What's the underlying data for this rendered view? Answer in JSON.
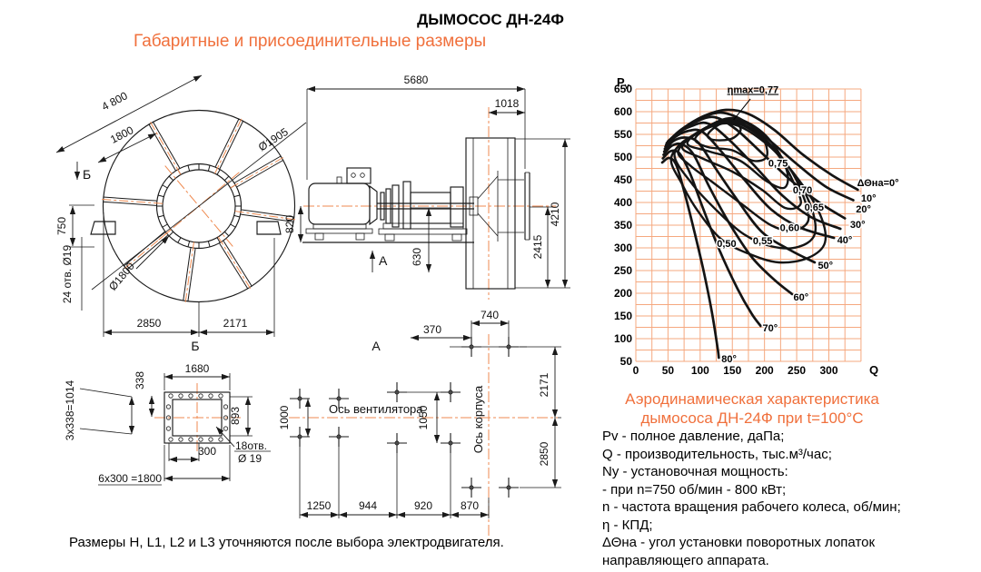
{
  "title": "ДЫМОСОС ДН-24Ф",
  "subtitle": "Габаритные и присоединительные размеры",
  "footnote": "Размеры  H, L1, L2 и L3 уточняются после выбора электродвигателя.",
  "chart_caption": {
    "line1": "Аэродинамическая характеристика",
    "line2": "дымососа ДН-24Ф при t=100°C"
  },
  "legend_lines": [
    "Pv - полное давление, даПа;",
    "Q - производительность, тыс.м³/час;",
    "Ny - установочная мощность:",
    "- при n=750 об/мин - 800 кВт;",
    "n - частота вращения рабочего колеса, об/мин;",
    "η - КПД;",
    "ΔΘна - угол установки поворотных лопаток",
    "направляющего аппарата."
  ],
  "colors": {
    "accent_text": "#f0703c",
    "grid": "#f5a87f",
    "centerline": "#ef8a50",
    "ink": "#1a1a1a",
    "curve": "#141414"
  },
  "drawings": {
    "front": {
      "d4800": "4 800",
      "d1800": "1800",
      "dia1905": "Ø1905",
      "dia1800": "Ø1800",
      "d750": "750",
      "holes": "24 отв. Ø19",
      "d2850": "2850",
      "d2171": "2171",
      "view": "Б",
      "arrow": "Б"
    },
    "side": {
      "d5680": "5680",
      "d1018": "1018",
      "d820": "820",
      "d630": "630",
      "d4210": "4210",
      "d2415": "2415",
      "arrow": "А"
    },
    "flange": {
      "d1680": "1680",
      "d338": "338",
      "d1014": "3x338=1014",
      "d893": "893",
      "d300": "300",
      "d1800": "6x300 =1800",
      "holes1": "18отв.",
      "holes2": "Ø 19"
    },
    "plan": {
      "view": "А",
      "d370": "370",
      "d740": "740",
      "d1000": "1000",
      "d1050": "1050",
      "axis_fan": "Ось вентилятора",
      "axis_housing": "Ось корпуса",
      "d2171": "2171",
      "d2850": "2850",
      "d1250": "1250",
      "d944": "944",
      "d920": "920",
      "d870": "870"
    }
  },
  "chart_data": {
    "type": "line",
    "title": "Аэродинамическая характеристика дымососа ДН-24Ф при t=100°C",
    "xlabel": "Q",
    "ylabel": "Pv",
    "xlim": [
      0,
      360
    ],
    "ylim": [
      50,
      650
    ],
    "x_ticks": [
      0,
      50,
      100,
      150,
      200,
      250,
      300
    ],
    "y_ticks": [
      50,
      100,
      150,
      200,
      250,
      300,
      350,
      400,
      450,
      500,
      550,
      600,
      650
    ],
    "grid": true,
    "grid_step": 25,
    "units": {
      "pressure": "даПа",
      "flow": "тыс.м³/час"
    },
    "pressure_curves": [
      {
        "angle": "ΔΘна=0°",
        "label": [
          344,
          444
        ],
        "points": [
          [
            50,
            535
          ],
          [
            75,
            565
          ],
          [
            105,
            590
          ],
          [
            140,
            604
          ],
          [
            175,
            595
          ],
          [
            215,
            560
          ],
          [
            260,
            505
          ],
          [
            305,
            460
          ],
          [
            345,
            428
          ]
        ]
      },
      {
        "angle": "10°",
        "label": [
          350,
          410
        ],
        "points": [
          [
            48,
            531
          ],
          [
            70,
            560
          ],
          [
            100,
            585
          ],
          [
            132,
            598
          ],
          [
            165,
            582
          ],
          [
            205,
            540
          ],
          [
            250,
            485
          ],
          [
            295,
            435
          ],
          [
            338,
            405
          ]
        ]
      },
      {
        "angle": "20°",
        "label": [
          342,
          386
        ],
        "points": [
          [
            47,
            527
          ],
          [
            66,
            555
          ],
          [
            92,
            577
          ],
          [
            122,
            588
          ],
          [
            155,
            562
          ],
          [
            195,
            510
          ],
          [
            240,
            450
          ],
          [
            285,
            400
          ],
          [
            325,
            365
          ]
        ]
      },
      {
        "angle": "30°",
        "label": [
          333,
          352
        ],
        "points": [
          [
            46,
            523
          ],
          [
            63,
            550
          ],
          [
            86,
            568
          ],
          [
            112,
            574
          ],
          [
            145,
            538
          ],
          [
            185,
            480
          ],
          [
            228,
            415
          ],
          [
            272,
            368
          ],
          [
            318,
            342
          ]
        ]
      },
      {
        "angle": "40°",
        "label": [
          313,
          318
        ],
        "points": [
          [
            45,
            518
          ],
          [
            60,
            543
          ],
          [
            80,
            557
          ],
          [
            103,
            556
          ],
          [
            133,
            512
          ],
          [
            170,
            448
          ],
          [
            210,
            385
          ],
          [
            255,
            345
          ],
          [
            308,
            322
          ]
        ]
      },
      {
        "angle": "50°",
        "label": [
          283,
          262
        ],
        "points": [
          [
            44,
            512
          ],
          [
            58,
            535
          ],
          [
            76,
            543
          ],
          [
            97,
            532
          ],
          [
            124,
            475
          ],
          [
            158,
            405
          ],
          [
            196,
            335
          ],
          [
            240,
            295
          ],
          [
            278,
            268
          ]
        ]
      },
      {
        "angle": "60°",
        "label": [
          245,
          192
        ],
        "points": [
          [
            43,
            505
          ],
          [
            56,
            525
          ],
          [
            72,
            528
          ],
          [
            90,
            505
          ],
          [
            114,
            435
          ],
          [
            145,
            355
          ],
          [
            180,
            280
          ],
          [
            215,
            230
          ],
          [
            243,
            198
          ]
        ]
      },
      {
        "angle": "70°",
        "label": [
          197,
          124
        ],
        "points": [
          [
            42,
            497
          ],
          [
            54,
            513
          ],
          [
            68,
            508
          ],
          [
            84,
            465
          ],
          [
            105,
            385
          ],
          [
            130,
            295
          ],
          [
            158,
            210
          ],
          [
            180,
            155
          ],
          [
            194,
            128
          ]
        ]
      },
      {
        "angle": "80°",
        "label": [
          133,
          56
        ],
        "points": [
          [
            41,
            488
          ],
          [
            52,
            498
          ],
          [
            63,
            482
          ],
          [
            76,
            420
          ],
          [
            92,
            330
          ],
          [
            106,
            245
          ],
          [
            118,
            160
          ],
          [
            127,
            80
          ],
          [
            129,
            58
          ]
        ]
      }
    ],
    "efficiency_contours": [
      {
        "eta": "0,77",
        "label": null,
        "points": [
          [
            112,
            550
          ],
          [
            130,
            572
          ],
          [
            152,
            576
          ],
          [
            163,
            560
          ],
          [
            148,
            540
          ],
          [
            120,
            538
          ]
        ]
      },
      {
        "eta": "0,75",
        "label": [
          206,
          487
        ],
        "points": [
          [
            92,
            540
          ],
          [
            118,
            570
          ],
          [
            150,
            582
          ],
          [
            180,
            568
          ],
          [
            200,
            535
          ],
          [
            203,
            500
          ],
          [
            182,
            492
          ],
          [
            150,
            515
          ],
          [
            112,
            522
          ]
        ]
      },
      {
        "eta": "0,70",
        "label": [
          244,
          428
        ],
        "points": [
          [
            80,
            530
          ],
          [
            110,
            566
          ],
          [
            150,
            586
          ],
          [
            190,
            562
          ],
          [
            220,
            515
          ],
          [
            236,
            462
          ],
          [
            230,
            432
          ],
          [
            202,
            448
          ],
          [
            162,
            492
          ],
          [
            115,
            512
          ]
        ]
      },
      {
        "eta": "0,65",
        "label": [
          262,
          390
        ],
        "points": [
          [
            72,
            522
          ],
          [
            104,
            560
          ],
          [
            148,
            580
          ],
          [
            192,
            550
          ],
          [
            226,
            495
          ],
          [
            248,
            435
          ],
          [
            256,
            396
          ],
          [
            232,
            388
          ],
          [
            196,
            428
          ],
          [
            150,
            468
          ],
          [
            102,
            498
          ]
        ]
      },
      {
        "eta": "0,60",
        "label": [
          224,
          345
        ],
        "points": [
          [
            66,
            514
          ],
          [
            100,
            558
          ],
          [
            150,
            580
          ],
          [
            198,
            542
          ],
          [
            236,
            482
          ],
          [
            260,
            415
          ],
          [
            268,
            360
          ],
          [
            244,
            338
          ],
          [
            210,
            350
          ],
          [
            166,
            395
          ],
          [
            118,
            446
          ],
          [
            84,
            482
          ]
        ]
      },
      {
        "eta": "0,55",
        "label": [
          182,
          316
        ],
        "points": [
          [
            60,
            507
          ],
          [
            94,
            552
          ],
          [
            148,
            578
          ],
          [
            202,
            535
          ],
          [
            244,
            465
          ],
          [
            272,
            392
          ],
          [
            278,
            330
          ],
          [
            252,
            302
          ],
          [
            212,
            303
          ],
          [
            168,
            330
          ],
          [
            126,
            382
          ],
          [
            88,
            440
          ]
        ]
      },
      {
        "eta": "0,50",
        "label": [
          126,
          310
        ],
        "points": [
          [
            55,
            499
          ],
          [
            88,
            546
          ],
          [
            145,
            574
          ],
          [
            204,
            528
          ],
          [
            252,
            452
          ],
          [
            286,
            375
          ],
          [
            294,
            312
          ],
          [
            268,
            278
          ],
          [
            222,
            268
          ],
          [
            174,
            288
          ],
          [
            132,
            320
          ],
          [
            96,
            382
          ],
          [
            72,
            440
          ]
        ]
      }
    ],
    "eta_max_annotation": {
      "text": "ηmax=0,77",
      "pos": [
        182,
        641
      ],
      "leader": [
        [
          178,
          628
        ],
        [
          152,
          582
        ]
      ]
    }
  }
}
